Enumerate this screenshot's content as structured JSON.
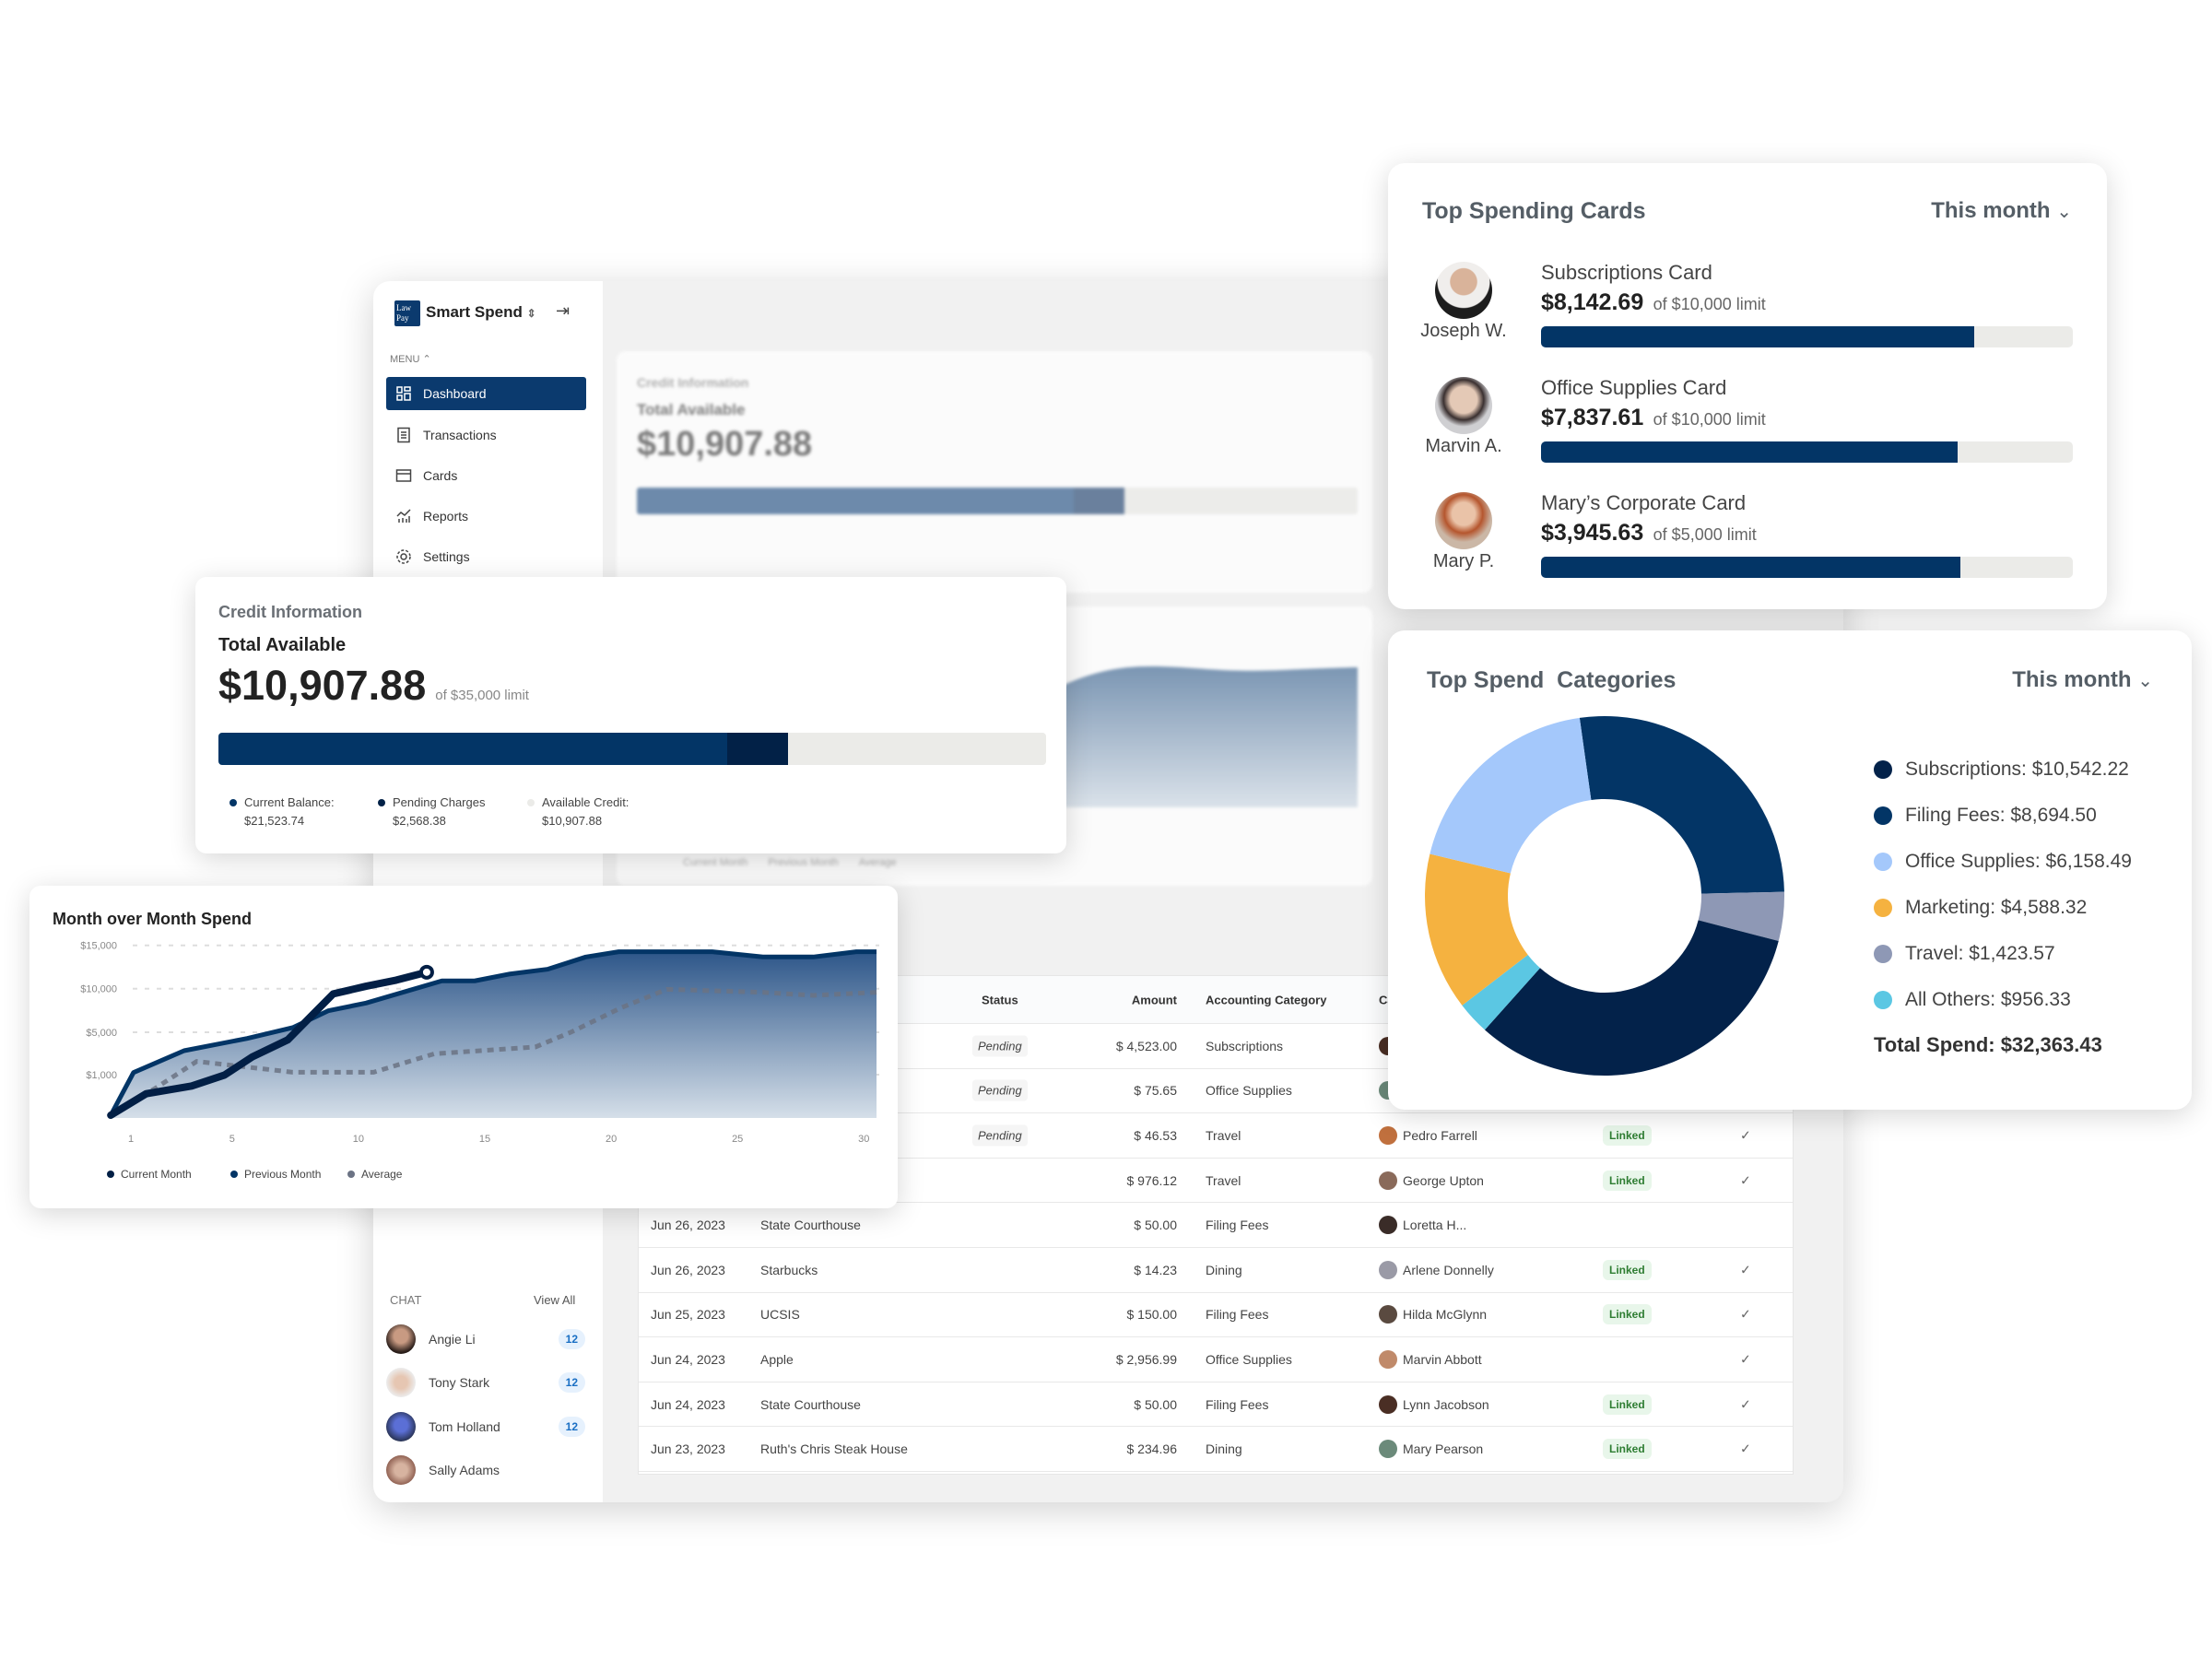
{
  "app": {
    "logo_text": "LAW PAY",
    "name": "Smart Spend",
    "menu_label": "MENU",
    "nav": [
      {
        "label": "Dashboard",
        "icon": "dashboard-icon",
        "active": true
      },
      {
        "label": "Transactions",
        "icon": "receipt-icon"
      },
      {
        "label": "Cards",
        "icon": "card-icon"
      },
      {
        "label": "Reports",
        "icon": "reports-icon"
      },
      {
        "label": "Settings",
        "icon": "gear-icon"
      }
    ],
    "chat": {
      "label": "CHAT",
      "view_all": "View All",
      "items": [
        {
          "name": "Angie Li",
          "unread": "12"
        },
        {
          "name": "Tony Stark",
          "unread": "12"
        },
        {
          "name": "Tom Holland",
          "unread": "12"
        },
        {
          "name": "Sally Adams",
          "unread": ""
        }
      ]
    }
  },
  "credit": {
    "title": "Credit Information",
    "total_label": "Total Available",
    "total": "$10,907.88",
    "limit_text": "of $35,000 limit",
    "limit": 35000,
    "current_balance": 21523.74,
    "pending_charges": 2568.38,
    "legend": [
      {
        "label": "Current Balance:",
        "value": "$21,523.74",
        "color": "#033566"
      },
      {
        "label": "Pending Charges",
        "value": "$2,568.38",
        "color": "#022147"
      },
      {
        "label": "Available Credit:",
        "value": "$10,907.88",
        "color": "#ebebe8"
      }
    ]
  },
  "back_chart_legend": [
    "Current Month",
    "Previous Month",
    "Average"
  ],
  "table": {
    "headers": {
      "status": "Status",
      "amount": "Amount",
      "category": "Accounting Category",
      "cardholder": "Ca"
    },
    "rows": [
      {
        "date": "",
        "merchant": "",
        "status": "Pending",
        "amount": "$ 4,523.00",
        "category": "Subscriptions",
        "cardholder": "",
        "linked": "",
        "check": false
      },
      {
        "date": "",
        "merchant": "",
        "status": "Pending",
        "amount": "$ 75.65",
        "category": "Office Supplies",
        "cardholder": "",
        "linked": "",
        "check": false
      },
      {
        "date": "",
        "merchant": "",
        "status": "Pending",
        "amount": "$ 46.53",
        "category": "Travel",
        "cardholder": "Pedro Farrell",
        "linked": "Linked",
        "check": true
      },
      {
        "date": "",
        "merchant": "",
        "status": "",
        "amount": "$ 976.12",
        "category": "Travel",
        "cardholder": "George Upton",
        "linked": "Linked",
        "check": true
      },
      {
        "date": "Jun 26, 2023",
        "merchant": "State Courthouse",
        "status": "",
        "amount": "$ 50.00",
        "category": "Filing Fees",
        "cardholder": "Loretta H...",
        "linked": "",
        "check": false
      },
      {
        "date": "Jun 26, 2023",
        "merchant": "Starbucks",
        "status": "",
        "amount": "$ 14.23",
        "category": "Dining",
        "cardholder": "Arlene Donnelly",
        "linked": "Linked",
        "check": true
      },
      {
        "date": "Jun 25, 2023",
        "merchant": "UCSIS",
        "status": "",
        "amount": "$ 150.00",
        "category": "Filing Fees",
        "cardholder": "Hilda McGlynn",
        "linked": "Linked",
        "check": true
      },
      {
        "date": "Jun 24, 2023",
        "merchant": "Apple",
        "status": "",
        "amount": "$ 2,956.99",
        "category": "Office Supplies",
        "cardholder": "Marvin Abbott",
        "linked": "",
        "check": true
      },
      {
        "date": "Jun 24, 2023",
        "merchant": "State Courthouse",
        "status": "",
        "amount": "$ 50.00",
        "category": "Filing Fees",
        "cardholder": "Lynn Jacobson",
        "linked": "Linked",
        "check": true
      },
      {
        "date": "Jun 23, 2023",
        "merchant": "Ruth's Chris Steak House",
        "status": "",
        "amount": "$ 234.96",
        "category": "Dining",
        "cardholder": "Mary Pearson",
        "linked": "Linked",
        "check": true
      }
    ]
  },
  "top_cards": {
    "title": "Top Spending Cards",
    "period": "This month",
    "items": [
      {
        "person": "Joseph W.",
        "card": "Subscriptions Card",
        "amount": "$8,142.69",
        "limit_text": "of $10,000 limit",
        "fraction": 0.814
      },
      {
        "person": "Marvin A.",
        "card": "Office Supplies Card",
        "amount": "$7,837.61",
        "limit_text": "of $10,000 limit",
        "fraction": 0.784
      },
      {
        "person": "Mary P.",
        "card": "Mary’s Corporate Card",
        "amount": "$3,945.63",
        "limit_text": "of $5,000 limit",
        "fraction": 0.789
      }
    ]
  },
  "chart_data": [
    {
      "type": "pie",
      "title": "Top Spend  Categories",
      "period": "This month",
      "slices": [
        {
          "label": "Subscriptions: $10,542.22",
          "name": "Subscriptions",
          "value": 10542.22,
          "color": "#03224a"
        },
        {
          "label": "Filing Fees: $8,694.50",
          "name": "Filing Fees",
          "value": 8694.5,
          "color": "#033566"
        },
        {
          "label": "Office Supplies: $6,158.49",
          "name": "Office Supplies",
          "value": 6158.49,
          "color": "#a4c8fb"
        },
        {
          "label": "Marketing: $4,588.32",
          "name": "Marketing",
          "value": 4588.32,
          "color": "#f5b240"
        },
        {
          "label": "Travel: $1,423.57",
          "name": "Travel",
          "value": 1423.57,
          "color": "#8e98b5"
        },
        {
          "label": "All Others: $956.33",
          "name": "All Others",
          "value": 956.33,
          "color": "#5bc7e3"
        }
      ],
      "draw_order": [
        "Filing Fees",
        "Travel",
        "Subscriptions",
        "All Others",
        "Marketing",
        "Office Supplies"
      ],
      "total": "Total Spend: $32,363.43",
      "legend": "right"
    },
    {
      "type": "line",
      "title": "Month over Month Spend",
      "x_ticks": [
        "1",
        "5",
        "10",
        "15",
        "20",
        "25",
        "30"
      ],
      "y_ticks": [
        "$15,000",
        "$10,000",
        "$5,000",
        "$1,000"
      ],
      "y_tick_values": [
        15000,
        10000,
        5000,
        1000
      ],
      "grid": true,
      "legend": "bottom-left",
      "series": [
        {
          "name": "Current Month",
          "color": "#021f45",
          "x": [
            0.2,
            1.6,
            3.4,
            4.7,
            5.8,
            7.2,
            8.1,
            9,
            10.3,
            11.5,
            12.7
          ],
          "y": [
            0,
            530,
            720,
            990,
            2680,
            4280,
            6760,
            9400,
            10280,
            10990,
            11900
          ]
        },
        {
          "name": "Previous Month",
          "color": "#033566",
          "area": true,
          "x": [
            0.2,
            1.1,
            3.1,
            5.6,
            7.4,
            8.8,
            10.3,
            13.3,
            14.6,
            16,
            17.5,
            19,
            20.3,
            24,
            26,
            28,
            29.7,
            30.5
          ],
          "y": [
            0,
            1200,
            3260,
            4420,
            5530,
            7460,
            8350,
            10900,
            10900,
            11700,
            12250,
            13660,
            14260,
            14260,
            13660,
            13660,
            14260,
            14260
          ]
        },
        {
          "name": "Average",
          "color": "#6b7384",
          "dashed": true,
          "x": [
            0.2,
            2,
            3.6,
            4.7,
            7.4,
            10.6,
            13,
            17,
            18.4,
            20.4,
            22.2,
            26,
            28,
            30.5
          ],
          "y": [
            0,
            680,
            2250,
            1960,
            1230,
            1230,
            2970,
            3610,
            5000,
            7820,
            9930,
            9580,
            9230,
            9580
          ]
        }
      ]
    }
  ]
}
